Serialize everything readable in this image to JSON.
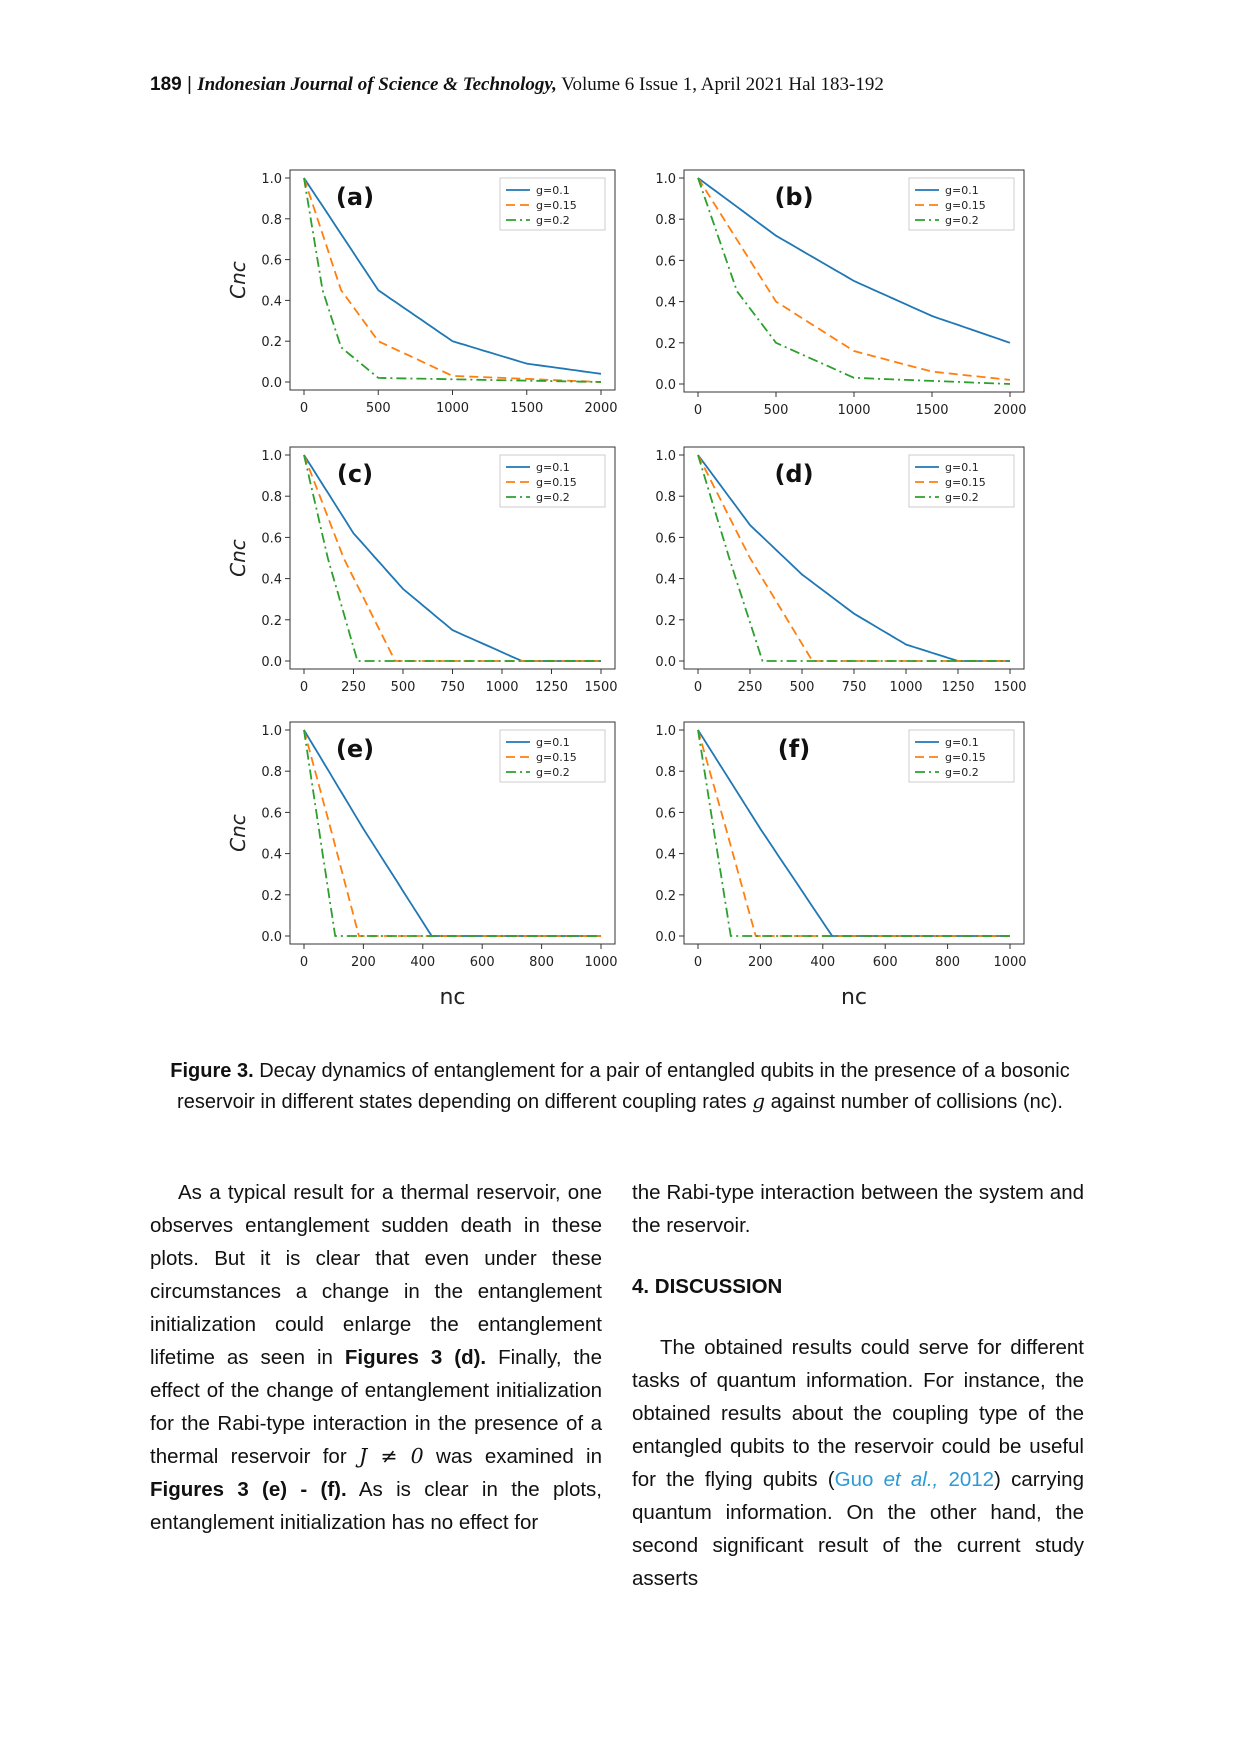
{
  "header": {
    "page": "189",
    "sep": " | ",
    "journal": "Indonesian Journal of Science & Technology,",
    "volume": " Volume 6 Issue 1, April 2021 Hal 183-192"
  },
  "figure": {
    "ylabel": "Cnc",
    "xlabel": "nc",
    "colors": {
      "g01": "#1f77b4",
      "g015": "#ff7f0e",
      "g02": "#2ca02c"
    },
    "legend": [
      "g=0.1",
      "g=0.15",
      "g=0.2"
    ]
  },
  "chart_data": [
    {
      "id": "a",
      "type": "line",
      "panel_label": "(a)",
      "xlim": [
        0,
        2000
      ],
      "ylim": [
        0,
        1.0
      ],
      "xticks": [
        "0",
        "500",
        "1000",
        "1500",
        "2000"
      ],
      "yticks": [
        "0.0",
        "0.2",
        "0.4",
        "0.6",
        "0.8",
        "1.0"
      ],
      "series": [
        {
          "name": "g=0.1",
          "x": [
            0,
            500,
            1000,
            1500,
            2000
          ],
          "y": [
            1.0,
            0.45,
            0.2,
            0.09,
            0.04
          ]
        },
        {
          "name": "g=0.15",
          "x": [
            0,
            250,
            500,
            1000,
            2000
          ],
          "y": [
            1.0,
            0.45,
            0.2,
            0.03,
            0.0
          ]
        },
        {
          "name": "g=0.2",
          "x": [
            0,
            125,
            250,
            500,
            2000
          ],
          "y": [
            1.0,
            0.45,
            0.17,
            0.02,
            0.0
          ]
        }
      ]
    },
    {
      "id": "b",
      "type": "line",
      "panel_label": "(b)",
      "xlim": [
        0,
        2000
      ],
      "ylim": [
        0,
        1.0
      ],
      "xticks": [
        "0",
        "500",
        "1000",
        "1500",
        "2000"
      ],
      "yticks": [
        "0.0",
        "0.2",
        "0.4",
        "0.6",
        "0.8",
        "1.0"
      ],
      "series": [
        {
          "name": "g=0.1",
          "x": [
            0,
            500,
            1000,
            1500,
            2000
          ],
          "y": [
            1.0,
            0.72,
            0.5,
            0.33,
            0.2
          ]
        },
        {
          "name": "g=0.15",
          "x": [
            0,
            500,
            1000,
            1500,
            2000
          ],
          "y": [
            1.0,
            0.4,
            0.16,
            0.06,
            0.02
          ]
        },
        {
          "name": "g=0.2",
          "x": [
            0,
            250,
            500,
            1000,
            2000
          ],
          "y": [
            1.0,
            0.45,
            0.2,
            0.03,
            0.0
          ]
        }
      ]
    },
    {
      "id": "c",
      "type": "line",
      "panel_label": "(c)",
      "xlim": [
        0,
        1500
      ],
      "ylim": [
        0,
        1.0
      ],
      "xticks": [
        "0",
        "250",
        "500",
        "750",
        "1000",
        "1250",
        "1500"
      ],
      "yticks": [
        "0.0",
        "0.2",
        "0.4",
        "0.6",
        "0.8",
        "1.0"
      ],
      "series": [
        {
          "name": "g=0.1",
          "x": [
            0,
            250,
            500,
            750,
            1100,
            1500
          ],
          "y": [
            1.0,
            0.62,
            0.35,
            0.15,
            0.0,
            0.0
          ]
        },
        {
          "name": "g=0.15",
          "x": [
            0,
            200,
            460,
            1500
          ],
          "y": [
            1.0,
            0.5,
            0.0,
            0.0
          ]
        },
        {
          "name": "g=0.2",
          "x": [
            0,
            120,
            270,
            1500
          ],
          "y": [
            1.0,
            0.5,
            0.0,
            0.0
          ]
        }
      ]
    },
    {
      "id": "d",
      "type": "line",
      "panel_label": "(d)",
      "xlim": [
        0,
        1500
      ],
      "ylim": [
        0,
        1.0
      ],
      "xticks": [
        "0",
        "250",
        "500",
        "750",
        "1000",
        "1250",
        "1500"
      ],
      "yticks": [
        "0.0",
        "0.2",
        "0.4",
        "0.6",
        "0.8",
        "1.0"
      ],
      "series": [
        {
          "name": "g=0.1",
          "x": [
            0,
            250,
            500,
            750,
            1000,
            1250,
            1500
          ],
          "y": [
            1.0,
            0.66,
            0.42,
            0.23,
            0.08,
            0.0,
            0.0
          ]
        },
        {
          "name": "g=0.15",
          "x": [
            0,
            250,
            550,
            1500
          ],
          "y": [
            1.0,
            0.5,
            0.0,
            0.0
          ]
        },
        {
          "name": "g=0.2",
          "x": [
            0,
            150,
            310,
            1500
          ],
          "y": [
            1.0,
            0.5,
            0.0,
            0.0
          ]
        }
      ]
    },
    {
      "id": "e",
      "type": "line",
      "panel_label": "(e)",
      "xlim": [
        0,
        1000
      ],
      "ylim": [
        0,
        1.0
      ],
      "xticks": [
        "0",
        "200",
        "400",
        "600",
        "800",
        "1000"
      ],
      "yticks": [
        "0.0",
        "0.2",
        "0.4",
        "0.6",
        "0.8",
        "1.0"
      ],
      "series": [
        {
          "name": "g=0.1",
          "x": [
            0,
            200,
            430,
            1000
          ],
          "y": [
            1.0,
            0.52,
            0.0,
            0.0
          ]
        },
        {
          "name": "g=0.15",
          "x": [
            0,
            90,
            185,
            1000
          ],
          "y": [
            1.0,
            0.52,
            0.0,
            0.0
          ]
        },
        {
          "name": "g=0.2",
          "x": [
            0,
            50,
            105,
            1000
          ],
          "y": [
            1.0,
            0.52,
            0.0,
            0.0
          ]
        }
      ]
    },
    {
      "id": "f",
      "type": "line",
      "panel_label": "(f)",
      "xlim": [
        0,
        1000
      ],
      "ylim": [
        0,
        1.0
      ],
      "xticks": [
        "0",
        "200",
        "400",
        "600",
        "800",
        "1000"
      ],
      "yticks": [
        "0.0",
        "0.2",
        "0.4",
        "0.6",
        "0.8",
        "1.0"
      ],
      "series": [
        {
          "name": "g=0.1",
          "x": [
            0,
            200,
            430,
            1000
          ],
          "y": [
            1.0,
            0.52,
            0.0,
            0.0
          ]
        },
        {
          "name": "g=0.15",
          "x": [
            0,
            90,
            185,
            1000
          ],
          "y": [
            1.0,
            0.52,
            0.0,
            0.0
          ]
        },
        {
          "name": "g=0.2",
          "x": [
            0,
            50,
            105,
            1000
          ],
          "y": [
            1.0,
            0.52,
            0.0,
            0.0
          ]
        }
      ]
    }
  ],
  "caption": {
    "label": "Figure 3.",
    "text_a": " Decay dynamics of entanglement for a pair of entangled qubits in the presence of a bosonic reservoir in different states depending on different coupling rates ",
    "symbol": "g",
    "text_b": " against number of collisions (nc)."
  },
  "left_column": {
    "p1_a": "As a typical result for a thermal reservoir, one observes entanglement sudden death in these plots. But it is clear that even under these circumstances a change in the entanglement initialization could enlarge the entanglement lifetime as seen in ",
    "ref1": "Figures 3 (d).",
    "p1_b": " Finally, the effect of the change of entanglement initialization for the Rabi-type interaction in the presence of a thermal reservoir for ",
    "math": "J ≠ 0",
    "p1_c": " was examined in ",
    "ref2": "Figures 3 (e) - (f).",
    "p1_d": " As is clear in the plots, entanglement initialization has no effect for"
  },
  "right_column": {
    "p1": "the Rabi-type interaction between the system and the reservoir.",
    "heading": "4. DISCUSSION",
    "p2_a": "The obtained results could serve for different tasks of quantum information. For instance, the obtained results about the coupling type of the entangled qubits to the reservoir could be useful for the flying qubits (",
    "cite_author": "Guo ",
    "cite_etal": "et al.,",
    "cite_year": " 2012",
    "p2_b": ") carrying quantum information. On the other hand, the second significant result of the current study asserts"
  }
}
